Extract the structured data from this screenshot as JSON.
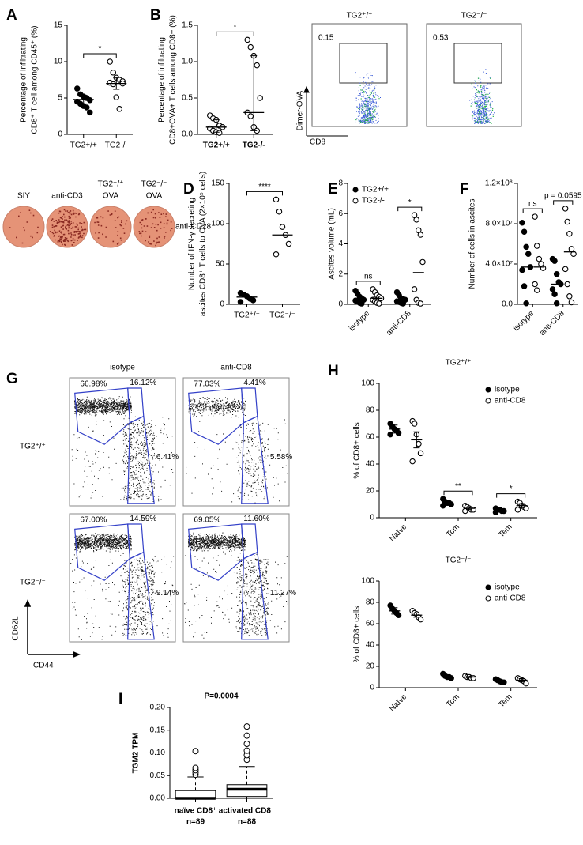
{
  "chart_data": [
    {
      "type": "dot",
      "panel": "A",
      "ylabel": [
        "Percentage of infiltrating",
        "CD8⁺ T cell among CD45⁺ (%)"
      ],
      "categories": [
        "TG2+/+",
        "TG2-/-"
      ],
      "ylim": [
        0,
        15
      ],
      "yticks": [
        0,
        5,
        10,
        15
      ],
      "series": [
        {
          "marker": [
            "filled",
            "open"
          ],
          "values": [
            [
              6.3,
              5.5,
              5.2,
              5.0,
              4.7,
              4.5,
              4.2,
              3.9,
              3.7,
              3.0
            ],
            [
              10.0,
              8.5,
              7.8,
              7.5,
              7.3,
              7.1,
              6.9,
              5.1,
              3.5,
              7.0
            ]
          ],
          "center": [
            4.8,
            7.0
          ],
          "error": [
            [
              4.2,
              5.4
            ],
            [
              6.2,
              7.8
            ]
          ]
        }
      ],
      "brackets": [
        {
          "categories": [
            0,
            1
          ],
          "label": "*"
        }
      ]
    },
    {
      "type": "dot",
      "panel": "B",
      "ylabel": [
        "Percentage of infiltrating",
        "CD8+OVA+ T cells among CD8+ (%)"
      ],
      "categories": [
        "TG2+/+",
        "TG2-/-"
      ],
      "ylim": [
        0,
        1.5
      ],
      "yticks": [
        {
          "value": 0,
          "label": "0.0"
        },
        0.5,
        {
          "value": 1,
          "label": "1.0"
        },
        1.5
      ],
      "series": [
        {
          "marker": [
            "open",
            "open"
          ],
          "values": [
            [
              0.26,
              0.22,
              0.2,
              0.12,
              0.1,
              0.08,
              0.05,
              0.03,
              0.02
            ],
            [
              1.3,
              1.2,
              1.08,
              0.95,
              0.5,
              0.3,
              0.25,
              0.1,
              0.05
            ]
          ],
          "center": [
            0.1,
            0.3
          ],
          "error": [
            [
              0.03,
              0.2
            ],
            [
              0.05,
              1.08
            ]
          ]
        }
      ],
      "brackets": [
        {
          "categories": [
            0,
            1
          ],
          "label": "*"
        }
      ]
    },
    {
      "type": "dot",
      "panel": "D",
      "ylabel": [
        "Number of IFN-γ secreting",
        "ascites CD8⁺ T cells to OVA (2×10⁵ cells)"
      ],
      "categories": [
        "TG2⁺/⁺",
        "TG2⁻/⁻"
      ],
      "ylim": [
        0,
        150
      ],
      "yticks": [
        0,
        50,
        100,
        150
      ],
      "series": [
        {
          "marker": [
            "filled",
            "open"
          ],
          "values": [
            [
              14,
              12,
              10,
              7,
              5,
              3
            ],
            [
              130,
              115,
              96,
              86,
              75,
              62
            ]
          ],
          "center": [
            9,
            86
          ]
        }
      ],
      "brackets": [
        {
          "categories": [
            0,
            1
          ],
          "label": "****"
        }
      ]
    },
    {
      "type": "dot",
      "panel": "E",
      "ylabel": [
        "Ascites volume (mL)"
      ],
      "categories": [
        "isotype",
        "anti-CD8"
      ],
      "ylim": [
        0,
        8
      ],
      "yticks": [
        0,
        2,
        4,
        6,
        8
      ],
      "legend": "upper left",
      "series": [
        {
          "name": "TG2+/+",
          "marker": "filled",
          "values": [
            [
              0.9,
              0.7,
              0.5,
              0.4,
              0.3,
              0.25,
              0.2,
              0.1,
              0.05
            ],
            [
              0.8,
              0.6,
              0.4,
              0.35,
              0.3,
              0.2,
              0.15,
              0.1,
              0.05
            ]
          ],
          "center": [
            0.3,
            0.3
          ]
        },
        {
          "name": "TG2-/-",
          "marker": "open",
          "values": [
            [
              1.0,
              0.8,
              0.6,
              0.5,
              0.4,
              0.3,
              0.2,
              0.1,
              0.05
            ],
            [
              5.9,
              5.6,
              4.9,
              4.6,
              2.8,
              1.0,
              0.3,
              0.1,
              0.05
            ]
          ],
          "center": [
            0.4,
            2.1
          ]
        }
      ],
      "brackets": [
        {
          "category": 0,
          "label": "ns"
        },
        {
          "category": 1,
          "label": "*"
        }
      ]
    },
    {
      "type": "dot",
      "panel": "F",
      "ylabel": [
        "Number of cells in ascites"
      ],
      "categories": [
        "isotype",
        "anti-CD8"
      ],
      "ylim": [
        0,
        120000000
      ],
      "yticks": [
        {
          "value": 0,
          "label": "0.0"
        },
        {
          "value": 40000000,
          "label": "4.0×10⁷"
        },
        {
          "value": 80000000,
          "label": "8.0×10⁷"
        },
        {
          "value": 120000000,
          "label": "1.2×10⁸"
        }
      ],
      "series": [
        {
          "marker": "filled",
          "values": [
            [
              81000000,
              72000000,
              57000000,
              50000000,
              37000000,
              34000000,
              18000000,
              1000000
            ],
            [
              45000000,
              43000000,
              30000000,
              22000000,
              20000000,
              15000000,
              10000000,
              1000000
            ]
          ],
          "center": [
            37000000,
            20000000
          ]
        },
        {
          "marker": "open",
          "values": [
            [
              87000000,
              58000000,
              45000000,
              40000000,
              36000000,
              20000000,
              14000000
            ],
            [
              95000000,
              82000000,
              70000000,
              55000000,
              50000000,
              35000000,
              20000000,
              8000000,
              2000000
            ]
          ],
          "center": [
            37000000,
            52000000
          ]
        }
      ],
      "brackets": [
        {
          "category": 0,
          "label": "ns"
        },
        {
          "category": 1,
          "label": "p = 0.0595"
        }
      ]
    },
    {
      "type": "dot",
      "panel": "H",
      "title": "TG2⁺/⁺",
      "ylabel": [
        "% of CD8+ cells"
      ],
      "categories": [
        "Naïve",
        "Tcm",
        "Tem"
      ],
      "ylim": [
        0,
        100
      ],
      "yticks": [
        0,
        20,
        40,
        60,
        80,
        100
      ],
      "legend": "upper right",
      "series": [
        {
          "name": "isotype",
          "marker": "filled",
          "values": [
            [
              70,
              68,
              66,
              65,
              63,
              62
            ],
            [
              14,
              12,
              11,
              11,
              10,
              9
            ],
            [
              7,
              6,
              6,
              5,
              5,
              4
            ]
          ],
          "center": [
            66,
            11,
            5.5
          ],
          "error": [
            [
              63,
              69
            ],
            [
              10,
              13
            ],
            [
              5,
              6.5
            ]
          ]
        },
        {
          "name": "anti-CD8",
          "marker": "open",
          "values": [
            [
              72,
              70,
              62,
              55,
              48,
              42
            ],
            [
              9,
              8,
              7,
              6,
              6,
              5
            ],
            [
              12,
              11,
              9,
              8,
              7,
              6
            ]
          ],
          "center": [
            58,
            7,
            9
          ],
          "error": [
            [
              52,
              64
            ],
            [
              6,
              8
            ],
            [
              7.5,
              10.5
            ]
          ]
        }
      ],
      "brackets": [
        {
          "category": 1,
          "label": "**"
        },
        {
          "category": 2,
          "label": "*"
        }
      ]
    },
    {
      "type": "dot",
      "title": "TG2⁻/⁻",
      "ylabel": [
        "% of CD8+ cells"
      ],
      "categories": [
        "Naïve",
        "Tcm",
        "Tem"
      ],
      "ylim": [
        0,
        100
      ],
      "yticks": [
        0,
        20,
        40,
        60,
        80,
        100
      ],
      "legend": "upper right",
      "series": [
        {
          "name": "isotype",
          "marker": "filled",
          "values": [
            [
              77,
              74,
              72,
              70,
              68
            ],
            [
              13,
              11,
              10,
              10,
              9
            ],
            [
              8,
              7,
              6,
              5,
              5
            ]
          ],
          "center": [
            72,
            10.5,
            6.5
          ],
          "error": [
            [
              69,
              75
            ],
            [
              9.5,
              11.5
            ],
            [
              5.5,
              7.5
            ]
          ]
        },
        {
          "name": "anti-CD8",
          "marker": "open",
          "values": [
            [
              72,
              70,
              69,
              66,
              64
            ],
            [
              11,
              10,
              10,
              9,
              9
            ],
            [
              9,
              8,
              7,
              6,
              4
            ]
          ],
          "center": [
            68,
            10,
            7
          ],
          "error": [
            [
              66,
              70
            ],
            [
              9.5,
              10.5
            ],
            [
              5.5,
              8.5
            ]
          ]
        }
      ]
    },
    {
      "type": "box",
      "panel": "I",
      "title": "P=0.0004",
      "ylabel": [
        "TGM2 TPM"
      ],
      "categories": [
        "naïve CD8⁺",
        "activated CD8⁺"
      ],
      "n_labels": [
        "n=89",
        "n=88"
      ],
      "ylim": [
        0,
        0.2
      ],
      "yticks": [
        {
          "value": 0,
          "label": "0.00"
        },
        0.05,
        {
          "value": 0.1,
          "label": "0.10"
        },
        0.15,
        {
          "value": 0.2,
          "label": "0.20"
        }
      ],
      "boxes": [
        {
          "whisker_low": 0,
          "q1": 0,
          "median": 0,
          "q3": 0.017,
          "whisker_high": 0.047,
          "outliers": [
            0.052,
            0.057,
            0.062,
            0.067,
            0.104
          ]
        },
        {
          "whisker_low": 0,
          "q1": 0.004,
          "median": 0.02,
          "q3": 0.03,
          "whisker_high": 0.07,
          "outliers": [
            0.085,
            0.095,
            0.105,
            0.12,
            0.138,
            0.158
          ]
        }
      ]
    }
  ],
  "flow_B": {
    "panels": [
      {
        "title": "TG2⁺/⁺",
        "value": 0.15
      },
      {
        "title": "TG2⁻/⁻",
        "value": 0.53
      }
    ],
    "ylabel": "Dimer-OVA",
    "xlabel": "CD8"
  },
  "wells_C": {
    "panel": "C",
    "labels": [
      [
        "SIY"
      ],
      [
        "anti-CD3"
      ],
      [
        "TG2⁺/⁺",
        "OVA"
      ],
      [
        "TG2⁻/⁻",
        "OVA"
      ]
    ],
    "row_label": "anti-CD28"
  },
  "flow_G": {
    "panel": "G",
    "columns": [
      "isotype",
      "anti-CD8"
    ],
    "rows": [
      "TG2⁺/⁺",
      "TG2⁻/⁻"
    ],
    "gates": [
      [
        [
          "66.98%",
          "16.12%",
          "6.41%"
        ],
        [
          "77.03%",
          "4.41%",
          "5.58%"
        ]
      ],
      [
        [
          "67.00%",
          "14.59%",
          "9.14%"
        ],
        [
          "69.05%",
          "11.60%",
          "11.27%"
        ]
      ]
    ],
    "ylabel": "CD62L",
    "xlabel": "CD44"
  }
}
